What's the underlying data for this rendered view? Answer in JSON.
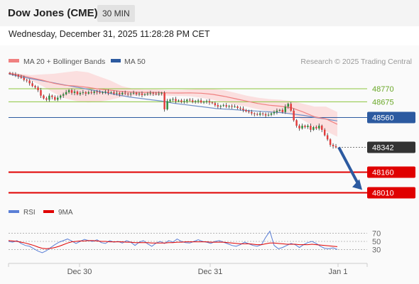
{
  "header": {
    "title": "Dow Jones (CME)",
    "timeframe": "30 MIN",
    "datetime": "Wednesday, December 31, 2025 11:28:28 PM CET"
  },
  "legend": {
    "ma20": "MA 20 + Bollinger Bands",
    "ma50": "MA 50",
    "credit": "Research © 2025 Trading Central",
    "ma20_color": "#f08080",
    "ma50_color": "#2c5aa0"
  },
  "rsi_legend": {
    "rsi": "RSI",
    "ma9": "9MA",
    "rsi_color": "#5b7fd6",
    "ma9_color": "#e00000"
  },
  "chart_data": [
    {
      "type": "candlestick",
      "title": "",
      "x_tick_labels": [
        "Dec 30",
        "Dec 31",
        "Jan 1"
      ],
      "ylim": [
        47950,
        48900
      ],
      "grid": false,
      "legend_position": "top",
      "levels": [
        {
          "label": "48770",
          "value": 48770,
          "kind": "resistance",
          "color": "#8cc63f"
        },
        {
          "label": "48675",
          "value": 48675,
          "kind": "resistance",
          "color": "#8cc63f"
        },
        {
          "label": "48560",
          "value": 48560,
          "kind": "pivot",
          "color": "#2c5aa0"
        },
        {
          "label": "48342",
          "value": 48342,
          "kind": "last-price",
          "color": "#333333"
        },
        {
          "label": "48160",
          "value": 48160,
          "kind": "support",
          "color": "#e00000"
        },
        {
          "label": "48010",
          "value": 48010,
          "kind": "support",
          "color": "#e00000"
        }
      ],
      "close": [
        48880,
        48875,
        48870,
        48860,
        48850,
        48835,
        48830,
        48810,
        48790,
        48780,
        48760,
        48720,
        48700,
        48690,
        48720,
        48710,
        48690,
        48705,
        48720,
        48730,
        48745,
        48760,
        48740,
        48750,
        48730,
        48740,
        48745,
        48735,
        48745,
        48740,
        48750,
        48745,
        48740,
        48745,
        48750,
        48740,
        48745,
        48735,
        48740,
        48730,
        48740,
        48735,
        48730,
        48735,
        48740,
        48730,
        48735,
        48725,
        48730,
        48735,
        48740,
        48735,
        48730,
        48735,
        48740,
        48620,
        48680,
        48690,
        48695,
        48680,
        48685,
        48675,
        48680,
        48690,
        48685,
        48675,
        48680,
        48685,
        48670,
        48675,
        48680,
        48670,
        48665,
        48650,
        48640,
        48645,
        48650,
        48640,
        48645,
        48640,
        48640,
        48630,
        48625,
        48615,
        48605,
        48600,
        48590,
        48585,
        48580,
        48590,
        48585,
        48575,
        48580,
        48590,
        48600,
        48610,
        48615,
        48600,
        48640,
        48660,
        48610,
        48540,
        48500,
        48480,
        48500,
        48490,
        48500,
        48470,
        48490,
        48480,
        48500,
        48470,
        48430,
        48400,
        48360,
        48350,
        48342
      ],
      "ma50": [
        48880,
        48860,
        48845,
        48830,
        48815,
        48800,
        48785,
        48770,
        48755,
        48740,
        48725,
        48710,
        48700,
        48690,
        48680,
        48665,
        48655,
        48645,
        48635,
        48625,
        48620,
        48615,
        48610,
        48605,
        48600,
        48595,
        48585,
        48575,
        48560,
        48548,
        48535
      ],
      "bb_upper": [
        48890,
        48880,
        48870,
        48875,
        48880,
        48890,
        48900,
        48890,
        48860,
        48830,
        48790,
        48770,
        48765,
        48765,
        48760,
        48760,
        48765,
        48770,
        48768,
        48760,
        48740,
        48720,
        48705,
        48695,
        48690,
        48680,
        48660,
        48640,
        48640,
        48600
      ],
      "bb_lower": [
        48875,
        48860,
        48830,
        48790,
        48740,
        48700,
        48680,
        48670,
        48675,
        48690,
        48710,
        48720,
        48722,
        48722,
        48720,
        48718,
        48715,
        48705,
        48690,
        48670,
        48655,
        48640,
        48620,
        48605,
        48595,
        48580,
        48540,
        48490,
        48460,
        48420
      ]
    },
    {
      "type": "line",
      "title": "",
      "ylim": [
        15,
        85
      ],
      "y_ticks": [
        "70",
        "50",
        "30"
      ],
      "series": [
        {
          "name": "RSI",
          "values": [
            50,
            48,
            52,
            45,
            40,
            38,
            32,
            26,
            22,
            27,
            35,
            42,
            48,
            52,
            56,
            51,
            45,
            50,
            55,
            52,
            50,
            54,
            47,
            45,
            52,
            48,
            50,
            46,
            52,
            48,
            40,
            48,
            52,
            44,
            38,
            46,
            50,
            45,
            52,
            48,
            56,
            50,
            47,
            46,
            50,
            54,
            50,
            48,
            45,
            50,
            52,
            48,
            44,
            40,
            38,
            42,
            48,
            44,
            40,
            38,
            42,
            60,
            75,
            40,
            32,
            35,
            40,
            45,
            42,
            35,
            42,
            47,
            50,
            45,
            38,
            33,
            32,
            34,
            30
          ]
        },
        {
          "name": "9MA",
          "values": [
            52,
            51,
            50,
            48,
            46,
            43,
            40,
            36,
            33,
            32,
            33,
            35,
            38,
            42,
            46,
            49,
            50,
            51,
            51,
            52,
            52,
            51,
            50,
            50,
            49,
            49,
            49,
            49,
            48,
            48,
            47,
            47,
            47,
            47,
            46,
            46,
            46,
            46,
            47,
            47,
            48,
            48,
            49,
            49,
            49,
            49,
            49,
            49,
            48,
            48,
            48,
            48,
            47,
            46,
            45,
            44,
            44,
            44,
            43,
            42,
            42,
            44,
            46,
            46,
            45,
            44,
            43,
            43,
            43,
            42,
            42,
            42,
            43,
            42,
            41,
            40,
            39,
            38,
            37
          ]
        }
      ]
    }
  ]
}
